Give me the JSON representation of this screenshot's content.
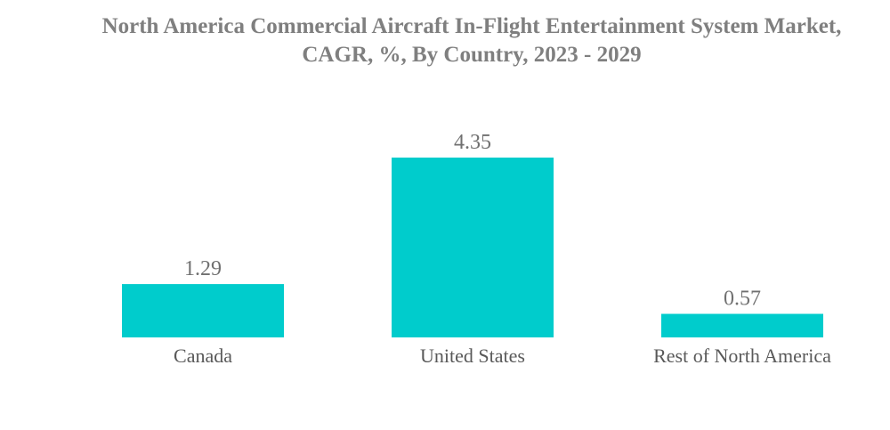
{
  "chart_data": {
    "type": "bar",
    "title": "North America Commercial Aircraft In-Flight Entertainment System Market, CAGR, %, By Country, 2023 - 2029",
    "title_lines": [
      "North America Commercial Aircraft In-Flight Entertainment System Market,",
      "CAGR, %, By Country, 2023 - 2029"
    ],
    "categories": [
      "Canada",
      "United States",
      "Rest of North America"
    ],
    "values": [
      1.29,
      4.35,
      0.57
    ],
    "value_labels": [
      "1.29",
      "4.35",
      "0.57"
    ],
    "xlabel": "",
    "ylabel": "",
    "ylim": [
      0,
      4.35
    ],
    "grid": false,
    "legend": "none",
    "bar_color": "#00cccc",
    "title_color": "#7f7f7f",
    "label_color": "#595959"
  }
}
